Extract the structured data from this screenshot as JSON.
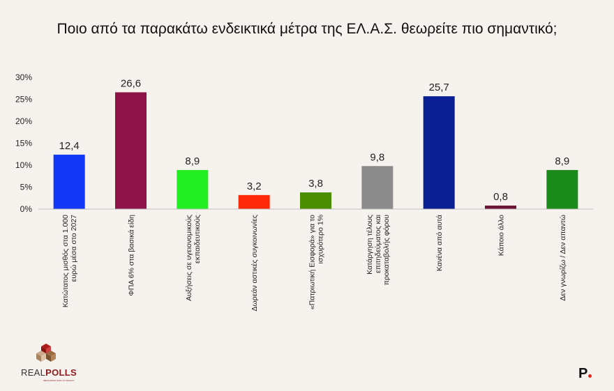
{
  "header": {
    "title": "Ποιο από τα παρακάτω ενδεικτικά μέτρα της ΕΛ.Α.Σ. θεωρείτε πιο σημαντικό;"
  },
  "branding": {
    "logo_left_a": "REAL",
    "logo_left_b": "POLLS",
    "logo_left_tagline": "MEASURING DATA TO INSIGHT",
    "logo_right": "P"
  },
  "chart_data": {
    "type": "bar",
    "title": "Ποιο από τα παρακάτω ενδεικτικά μέτρα της ΕΛ.Α.Σ. θεωρείτε πιο σημαντικό;",
    "xlabel": "",
    "ylabel": "",
    "ylim": [
      0,
      30
    ],
    "yticks": [
      "0%",
      "5%",
      "10%",
      "15%",
      "20%",
      "25%",
      "30%"
    ],
    "ytick_values": [
      0,
      5,
      10,
      15,
      20,
      25,
      30
    ],
    "grid": false,
    "legend": "none",
    "categories": [
      [
        "Κατώτατος μισθός στα 1.000",
        "ευρώ μέσα στο 2027"
      ],
      [
        "ΦΠΑ 6% στα βασικά είδη"
      ],
      [
        "Αυξήσεις σε υγειονομικούς",
        "εκπαιδευτικούς"
      ],
      [
        "Δωρεάν αστικές συγκοινωνίες"
      ],
      [
        "«Πατριωτική Εισφορά» για το",
        "ισχυρότερο 1%"
      ],
      [
        "Κατάργηση τέλους",
        "επιτηδεύματος και",
        "προκαταβολής φόρου"
      ],
      [
        "Κανένα από αυτά"
      ],
      [
        "Κάποιο άλλο"
      ],
      [
        "Δεν γνωρίζω / Δεν απαντώ"
      ]
    ],
    "values": [
      12.4,
      26.6,
      8.9,
      3.2,
      3.8,
      9.8,
      25.7,
      0.8,
      8.9
    ],
    "value_labels": [
      "12,4",
      "26,6",
      "8,9",
      "3,2",
      "3,8",
      "9,8",
      "25,7",
      "0,8",
      "8,9"
    ],
    "colors": [
      "#1438f5",
      "#8e1447",
      "#22ee22",
      "#ff2a0a",
      "#4a8e00",
      "#8c8c8c",
      "#0b1f94",
      "#6e1236",
      "#1a8a1a"
    ]
  }
}
